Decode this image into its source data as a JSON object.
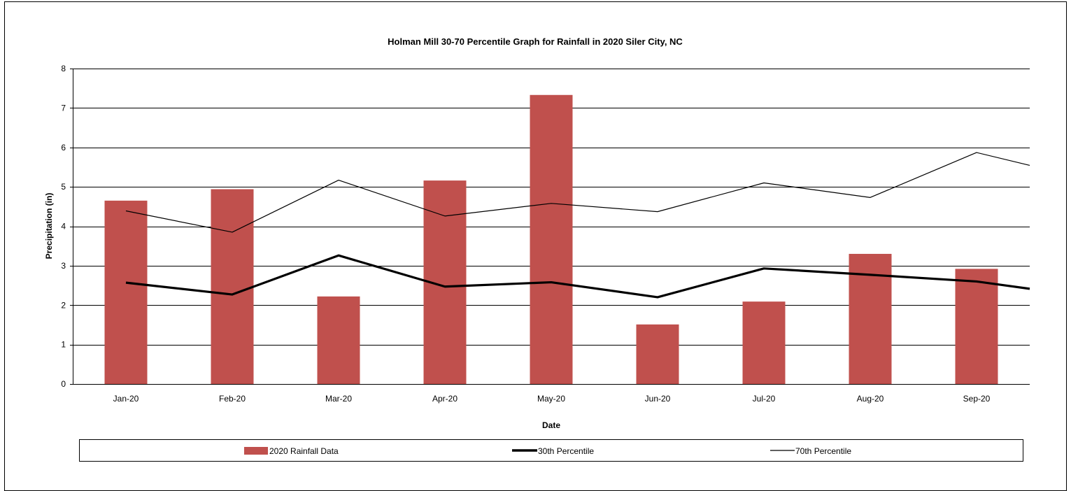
{
  "chart_data": {
    "type": "bar",
    "title": "Holman Mill 30-70 Percentile Graph for Rainfall in 2020 Siler City, NC",
    "xlabel": "Date",
    "ylabel": "Precipitation (in)",
    "ylim": [
      0,
      8
    ],
    "yticks": [
      "0",
      "1",
      "2",
      "3",
      "4",
      "5",
      "6",
      "7",
      "8"
    ],
    "grid": true,
    "legend_position": "bottom",
    "categories": [
      "Jan-20",
      "Feb-20",
      "Mar-20",
      "Apr-20",
      "May-20",
      "Jun-20",
      "Jul-20",
      "Aug-20",
      "Sep-20"
    ],
    "series": [
      {
        "name": "2020 Rainfall Data",
        "type": "bar",
        "color": "#C0504D",
        "values": [
          4.65,
          4.94,
          2.22,
          5.16,
          7.33,
          1.51,
          2.09,
          3.3,
          2.92
        ]
      },
      {
        "name": "30th Percentile",
        "type": "line",
        "color": "#000000",
        "width": "thick",
        "values": [
          2.57,
          2.27,
          3.26,
          2.47,
          2.58,
          2.2,
          2.93,
          2.77,
          2.6
        ],
        "continues_to": 2.23
      },
      {
        "name": "70th Percentile",
        "type": "line",
        "color": "#000000",
        "width": "thin",
        "values": [
          4.39,
          3.85,
          5.17,
          4.26,
          4.58,
          4.37,
          5.1,
          4.73,
          5.87
        ],
        "continues_to": 5.22
      }
    ]
  }
}
